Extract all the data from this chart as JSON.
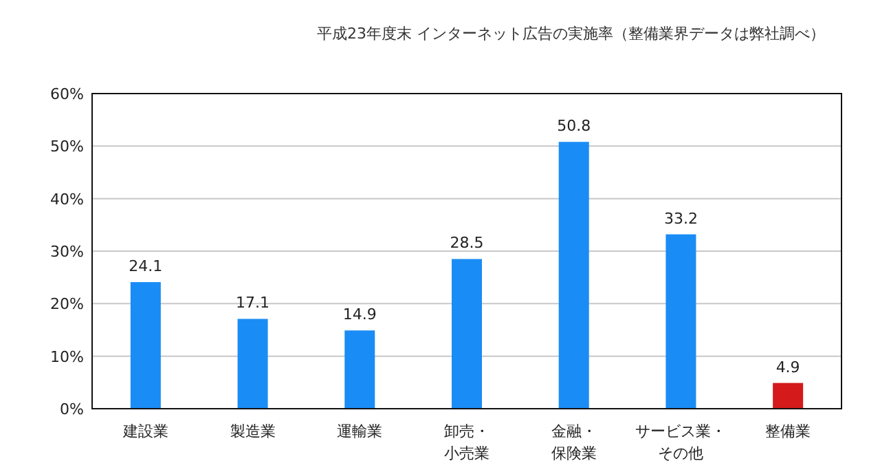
{
  "chart_data": {
    "type": "bar",
    "title": "平成23年度末 インターネット広告の実施率（整備業界データは弊社調べ）",
    "categories": [
      "建設業",
      "製造業",
      "運輸業",
      "卸売・小売業",
      "金融・保険業",
      "サービス業・その他",
      "整備業"
    ],
    "values": [
      24.1,
      17.1,
      14.9,
      28.5,
      50.8,
      33.2,
      4.9
    ],
    "colors": [
      "#1a8cf5",
      "#1a8cf5",
      "#1a8cf5",
      "#1a8cf5",
      "#1a8cf5",
      "#1a8cf5",
      "#d41a1a"
    ],
    "data_labels": true,
    "ylim": [
      0,
      60
    ],
    "yticks": [
      {
        "value": 0,
        "label": "0%"
      },
      {
        "value": 10,
        "label": "10%"
      },
      {
        "value": 20,
        "label": "20%"
      },
      {
        "value": 30,
        "label": "30%"
      },
      {
        "value": 40,
        "label": "40%"
      },
      {
        "value": 50,
        "label": "50%"
      },
      {
        "value": 60,
        "label": "60%"
      }
    ],
    "grid": "y"
  }
}
